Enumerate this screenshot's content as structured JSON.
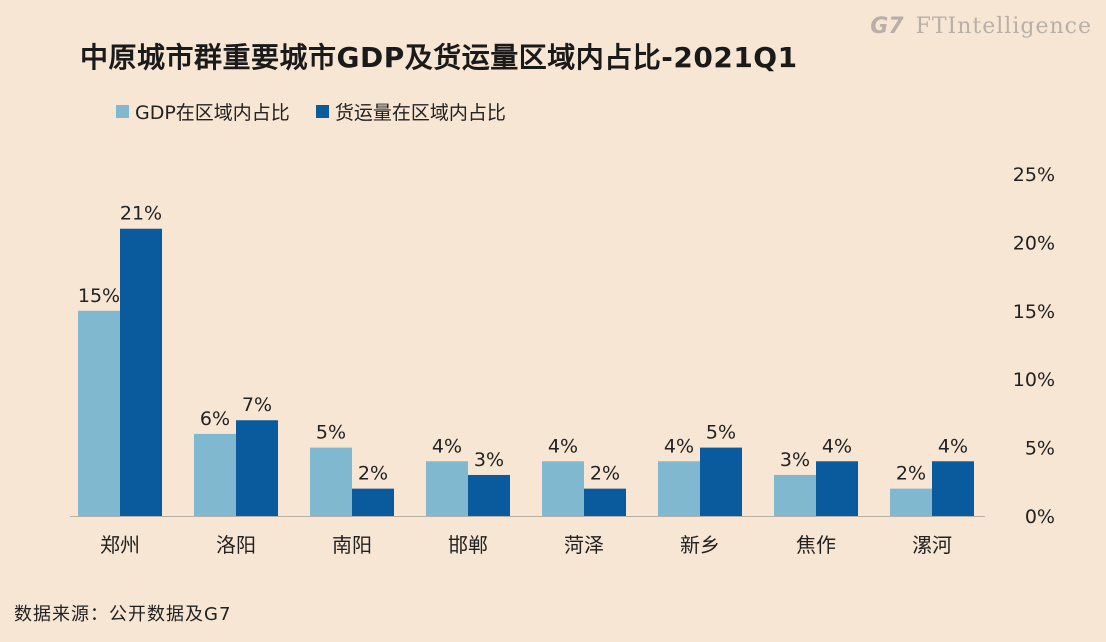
{
  "header": {
    "title": "中原城市群重要城市GDP及货运量区域内占比-2021Q1",
    "brand_g7": "G7",
    "brand_ft": "FTIntelligence"
  },
  "source": "数据来源：公开数据及G7",
  "colors": {
    "background": "#f7e6d4",
    "gdp": "#7fb8cf",
    "freight": "#0a5a9e"
  },
  "chart_data": {
    "type": "bar",
    "title": "中原城市群重要城市GDP及货运量区域内占比-2021Q1",
    "categories": [
      "郑州",
      "洛阳",
      "南阳",
      "邯郸",
      "菏泽",
      "新乡",
      "焦作",
      "漯河"
    ],
    "series": [
      {
        "name": "GDP在区域内占比",
        "values": [
          15,
          6,
          5,
          4,
          4,
          4,
          3,
          2
        ],
        "value_labels": [
          "15%",
          "6%",
          "5%",
          "4%",
          "4%",
          "4%",
          "3%",
          "2%"
        ]
      },
      {
        "name": "货运量在区域内占比",
        "values": [
          21,
          7,
          2,
          3,
          2,
          5,
          4,
          4
        ],
        "value_labels": [
          "21%",
          "7%",
          "2%",
          "3%",
          "2%",
          "5%",
          "4%",
          "4%"
        ]
      }
    ],
    "ylim": [
      0,
      25
    ],
    "y_ticks": [
      "0%",
      "5%",
      "10%",
      "15%",
      "20%",
      "25%"
    ],
    "y_axis_side": "right",
    "grid": false,
    "legend_position": "top-left"
  }
}
